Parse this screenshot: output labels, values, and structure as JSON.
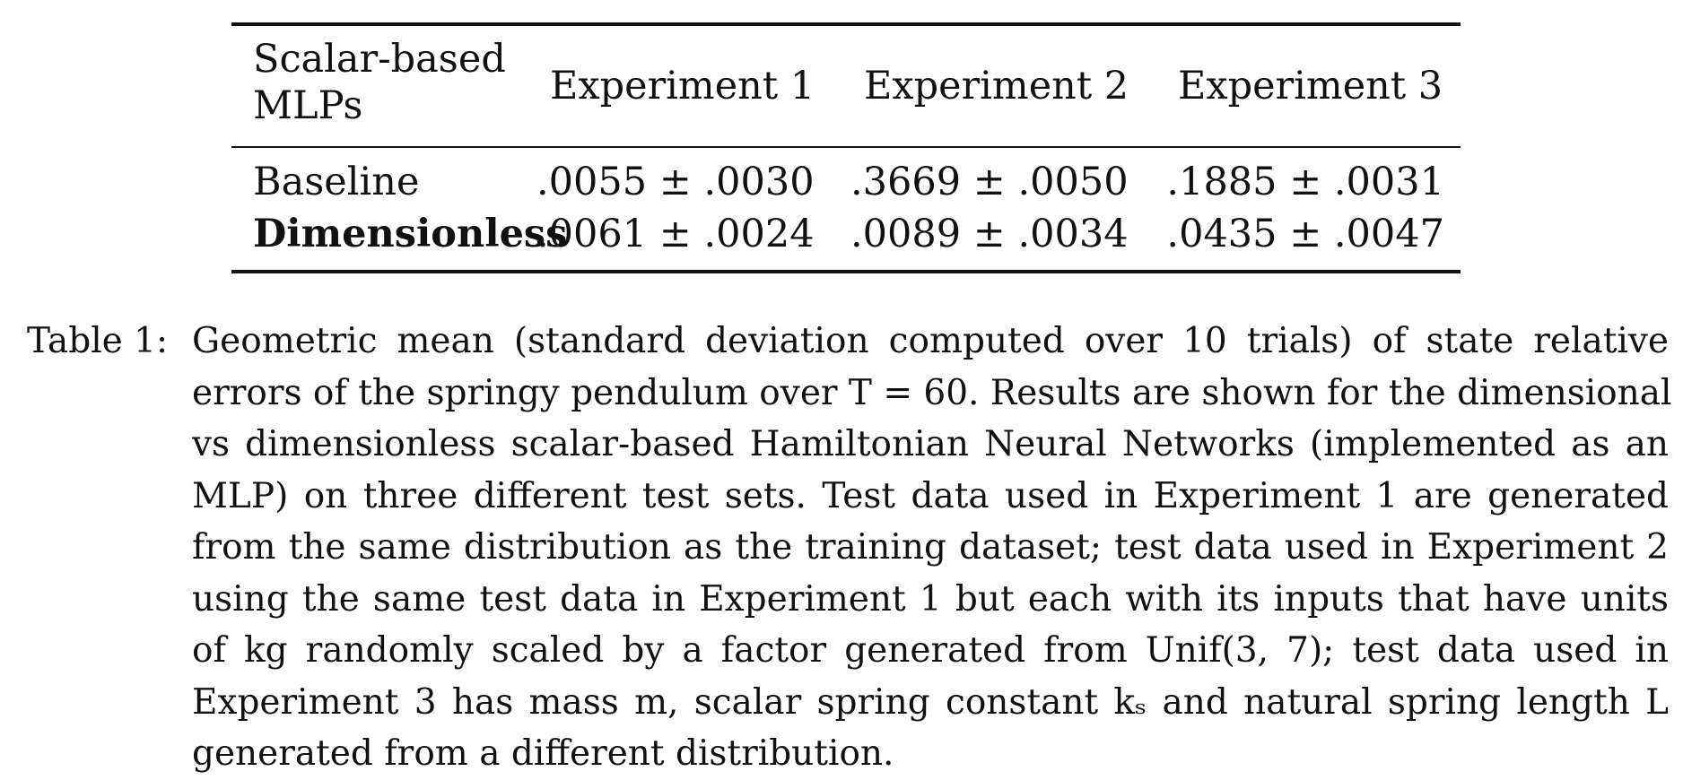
{
  "table": {
    "header": {
      "first_line1": "Scalar-based",
      "first_line2": "MLPs",
      "col1": "Experiment 1",
      "col2": "Experiment 2",
      "col3": "Experiment 3"
    },
    "rows": [
      {
        "label": "Baseline",
        "exp1": ".0055 ± .0030",
        "exp2": ".3669 ± .0050",
        "exp3": ".1885 ± .0031"
      },
      {
        "label": "Dimensionless",
        "exp1": ".0061 ± .0024",
        "exp2": ".0089 ± .0034",
        "exp3": ".0435 ± .0047"
      }
    ]
  },
  "caption": {
    "label": "Table 1:",
    "lines": [
      "Geometric mean (standard deviation computed over 10 trials) of state relative",
      "errors of the springy pendulum over T = 60. Results are shown for the dimensional",
      "vs dimensionless scalar-based Hamiltonian Neural Networks (implemented as an",
      "MLP) on three different test sets. Test data used in Experiment 1 are generated",
      "from the same distribution as the training dataset; test data used in Experiment 2",
      "using the same test data in Experiment 1 but each with its inputs that have units",
      "of kg randomly scaled by a factor generated from Unif(3, 7); test data used in",
      "Experiment 3 has mass m, scalar spring constant kₛ and natural spring length L",
      "generated from a different distribution."
    ]
  }
}
